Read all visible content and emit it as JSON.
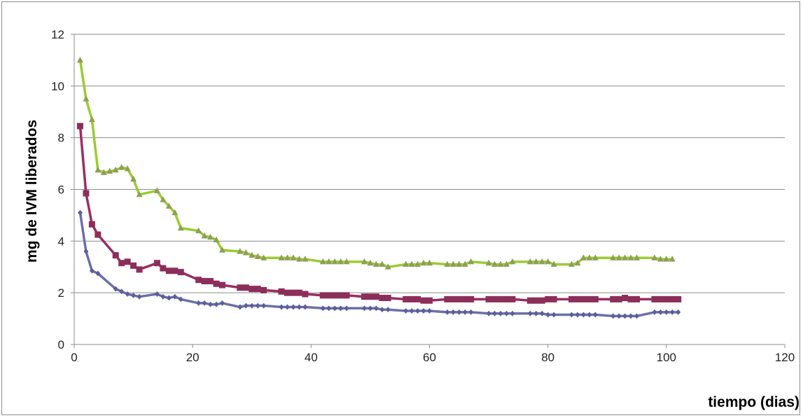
{
  "chart_data": {
    "type": "line",
    "title": "",
    "xlabel": "tiempo (dias)",
    "ylabel": "mg de IVM liberados",
    "xlim": [
      0,
      120
    ],
    "ylim": [
      0,
      12
    ],
    "xticks": [
      0,
      20,
      40,
      60,
      80,
      100,
      120
    ],
    "yticks": [
      0,
      2,
      4,
      6,
      8,
      10,
      12
    ],
    "grid": "horizontal",
    "legend": "none",
    "series": [
      {
        "color": "#99cc33",
        "marker_color": "#8f9f55",
        "marker": "triangle",
        "points": [
          [
            1,
            11.0
          ],
          [
            2,
            9.5
          ],
          [
            3,
            8.7
          ],
          [
            4,
            6.75
          ],
          [
            5,
            6.65
          ],
          [
            6,
            6.7
          ],
          [
            7,
            6.75
          ],
          [
            8,
            6.85
          ],
          [
            9,
            6.8
          ],
          [
            10,
            6.4
          ],
          [
            11,
            5.8
          ],
          [
            14,
            5.95
          ],
          [
            15,
            5.6
          ],
          [
            16,
            5.35
          ],
          [
            17,
            5.1
          ],
          [
            18,
            4.5
          ],
          [
            21,
            4.4
          ],
          [
            22,
            4.2
          ],
          [
            23,
            4.15
          ],
          [
            24,
            4.05
          ],
          [
            25,
            3.65
          ],
          [
            28,
            3.6
          ],
          [
            29,
            3.55
          ],
          [
            30,
            3.45
          ],
          [
            31,
            3.4
          ],
          [
            32,
            3.35
          ],
          [
            35,
            3.35
          ],
          [
            36,
            3.35
          ],
          [
            37,
            3.35
          ],
          [
            38,
            3.3
          ],
          [
            39,
            3.3
          ],
          [
            42,
            3.2
          ],
          [
            43,
            3.2
          ],
          [
            44,
            3.2
          ],
          [
            45,
            3.2
          ],
          [
            46,
            3.2
          ],
          [
            49,
            3.2
          ],
          [
            50,
            3.15
          ],
          [
            51,
            3.1
          ],
          [
            52,
            3.1
          ],
          [
            53,
            3.0
          ],
          [
            56,
            3.1
          ],
          [
            57,
            3.1
          ],
          [
            58,
            3.1
          ],
          [
            59,
            3.15
          ],
          [
            60,
            3.15
          ],
          [
            63,
            3.1
          ],
          [
            64,
            3.1
          ],
          [
            65,
            3.1
          ],
          [
            66,
            3.1
          ],
          [
            67,
            3.2
          ],
          [
            70,
            3.15
          ],
          [
            71,
            3.1
          ],
          [
            72,
            3.1
          ],
          [
            73,
            3.1
          ],
          [
            74,
            3.2
          ],
          [
            77,
            3.2
          ],
          [
            78,
            3.2
          ],
          [
            79,
            3.2
          ],
          [
            80,
            3.2
          ],
          [
            81,
            3.1
          ],
          [
            84,
            3.1
          ],
          [
            85,
            3.15
          ],
          [
            86,
            3.35
          ],
          [
            87,
            3.35
          ],
          [
            88,
            3.35
          ],
          [
            91,
            3.35
          ],
          [
            92,
            3.35
          ],
          [
            93,
            3.35
          ],
          [
            94,
            3.35
          ],
          [
            95,
            3.35
          ],
          [
            98,
            3.35
          ],
          [
            99,
            3.3
          ],
          [
            100,
            3.3
          ],
          [
            101,
            3.3
          ]
        ]
      },
      {
        "color": "#9b2d5f",
        "marker_color": "#8c2e5a",
        "marker": "square",
        "points": [
          [
            1,
            8.45
          ],
          [
            2,
            5.85
          ],
          [
            3,
            4.65
          ],
          [
            4,
            4.25
          ],
          [
            7,
            3.45
          ],
          [
            8,
            3.15
          ],
          [
            9,
            3.2
          ],
          [
            10,
            3.05
          ],
          [
            11,
            2.9
          ],
          [
            14,
            3.15
          ],
          [
            15,
            2.95
          ],
          [
            16,
            2.85
          ],
          [
            17,
            2.85
          ],
          [
            18,
            2.8
          ],
          [
            21,
            2.5
          ],
          [
            22,
            2.45
          ],
          [
            23,
            2.45
          ],
          [
            24,
            2.35
          ],
          [
            25,
            2.3
          ],
          [
            28,
            2.2
          ],
          [
            29,
            2.2
          ],
          [
            30,
            2.15
          ],
          [
            31,
            2.15
          ],
          [
            32,
            2.1
          ],
          [
            35,
            2.05
          ],
          [
            36,
            2.0
          ],
          [
            37,
            2.0
          ],
          [
            38,
            2.0
          ],
          [
            39,
            1.95
          ],
          [
            42,
            1.9
          ],
          [
            43,
            1.9
          ],
          [
            44,
            1.9
          ],
          [
            45,
            1.9
          ],
          [
            46,
            1.9
          ],
          [
            49,
            1.85
          ],
          [
            50,
            1.85
          ],
          [
            51,
            1.85
          ],
          [
            52,
            1.8
          ],
          [
            53,
            1.8
          ],
          [
            56,
            1.75
          ],
          [
            57,
            1.75
          ],
          [
            58,
            1.75
          ],
          [
            59,
            1.7
          ],
          [
            60,
            1.7
          ],
          [
            63,
            1.75
          ],
          [
            64,
            1.75
          ],
          [
            65,
            1.75
          ],
          [
            66,
            1.75
          ],
          [
            67,
            1.75
          ],
          [
            70,
            1.75
          ],
          [
            71,
            1.75
          ],
          [
            72,
            1.75
          ],
          [
            73,
            1.75
          ],
          [
            74,
            1.75
          ],
          [
            77,
            1.7
          ],
          [
            78,
            1.7
          ],
          [
            79,
            1.7
          ],
          [
            80,
            1.75
          ],
          [
            81,
            1.75
          ],
          [
            84,
            1.75
          ],
          [
            85,
            1.75
          ],
          [
            86,
            1.75
          ],
          [
            87,
            1.75
          ],
          [
            88,
            1.75
          ],
          [
            91,
            1.75
          ],
          [
            92,
            1.75
          ],
          [
            93,
            1.8
          ],
          [
            94,
            1.75
          ],
          [
            95,
            1.75
          ],
          [
            98,
            1.75
          ],
          [
            99,
            1.75
          ],
          [
            100,
            1.75
          ],
          [
            101,
            1.75
          ],
          [
            102,
            1.75
          ]
        ]
      },
      {
        "color": "#6e6fa8",
        "marker_color": "#5a5f9c",
        "marker": "diamond",
        "points": [
          [
            1,
            5.1
          ],
          [
            2,
            3.6
          ],
          [
            3,
            2.85
          ],
          [
            4,
            2.75
          ],
          [
            7,
            2.15
          ],
          [
            8,
            2.05
          ],
          [
            9,
            1.95
          ],
          [
            10,
            1.9
          ],
          [
            11,
            1.85
          ],
          [
            14,
            1.95
          ],
          [
            15,
            1.85
          ],
          [
            16,
            1.8
          ],
          [
            17,
            1.85
          ],
          [
            18,
            1.75
          ],
          [
            21,
            1.6
          ],
          [
            22,
            1.6
          ],
          [
            23,
            1.55
          ],
          [
            24,
            1.55
          ],
          [
            25,
            1.6
          ],
          [
            28,
            1.45
          ],
          [
            29,
            1.5
          ],
          [
            30,
            1.5
          ],
          [
            31,
            1.5
          ],
          [
            32,
            1.5
          ],
          [
            35,
            1.45
          ],
          [
            36,
            1.45
          ],
          [
            37,
            1.45
          ],
          [
            38,
            1.45
          ],
          [
            39,
            1.45
          ],
          [
            42,
            1.4
          ],
          [
            43,
            1.4
          ],
          [
            44,
            1.4
          ],
          [
            45,
            1.4
          ],
          [
            46,
            1.4
          ],
          [
            49,
            1.4
          ],
          [
            50,
            1.4
          ],
          [
            51,
            1.4
          ],
          [
            52,
            1.35
          ],
          [
            53,
            1.35
          ],
          [
            56,
            1.3
          ],
          [
            57,
            1.3
          ],
          [
            58,
            1.3
          ],
          [
            59,
            1.3
          ],
          [
            60,
            1.3
          ],
          [
            63,
            1.25
          ],
          [
            64,
            1.25
          ],
          [
            65,
            1.25
          ],
          [
            66,
            1.25
          ],
          [
            67,
            1.25
          ],
          [
            70,
            1.2
          ],
          [
            71,
            1.2
          ],
          [
            72,
            1.2
          ],
          [
            73,
            1.2
          ],
          [
            74,
            1.2
          ],
          [
            77,
            1.2
          ],
          [
            78,
            1.2
          ],
          [
            79,
            1.2
          ],
          [
            80,
            1.15
          ],
          [
            81,
            1.15
          ],
          [
            84,
            1.15
          ],
          [
            85,
            1.15
          ],
          [
            86,
            1.15
          ],
          [
            87,
            1.15
          ],
          [
            88,
            1.15
          ],
          [
            91,
            1.1
          ],
          [
            92,
            1.1
          ],
          [
            93,
            1.1
          ],
          [
            94,
            1.1
          ],
          [
            95,
            1.1
          ],
          [
            98,
            1.25
          ],
          [
            99,
            1.25
          ],
          [
            100,
            1.25
          ],
          [
            101,
            1.25
          ],
          [
            102,
            1.25
          ]
        ]
      }
    ]
  }
}
